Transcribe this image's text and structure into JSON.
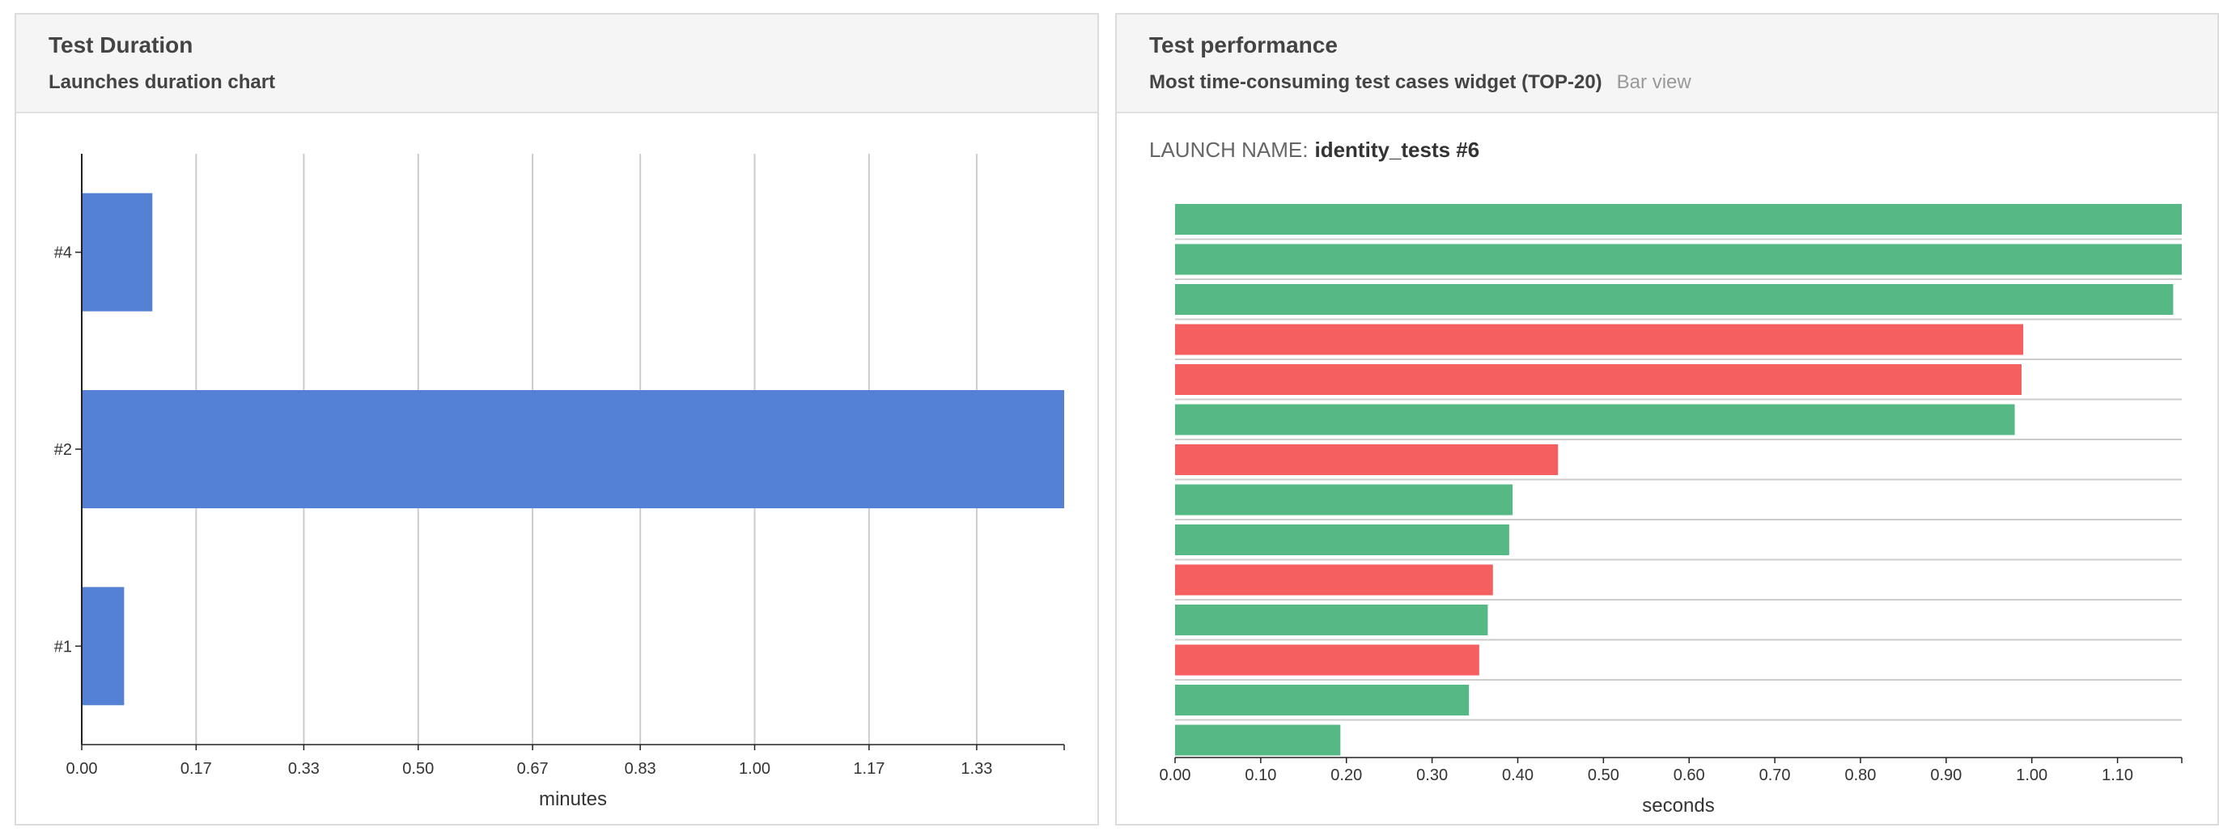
{
  "left_widget": {
    "title": "Test Duration",
    "subtitle": "Launches duration chart"
  },
  "right_widget": {
    "title": "Test performance",
    "subtitle": "Most time-consuming test cases widget (TOP-20)",
    "view_mode": "Bar view",
    "launch_label": "LAUNCH NAME:",
    "launch_name": "identity_tests #6"
  },
  "colors": {
    "duration_bar": "#5581d5",
    "passed": "#56b985",
    "failed": "#f55f5f",
    "grid": "#cccccc",
    "axis": "#222222"
  },
  "chart_data": [
    {
      "type": "bar",
      "orientation": "horizontal",
      "categories": [
        "#4",
        "#2",
        "#1"
      ],
      "values": [
        0.105,
        1.46,
        0.063
      ],
      "xlabel": "minutes",
      "xticks": [
        "0.00",
        "0.17",
        "0.33",
        "0.50",
        "0.67",
        "0.83",
        "1.00",
        "1.17",
        "1.33"
      ],
      "xlim": [
        0,
        1.46
      ],
      "grid": true
    },
    {
      "type": "bar",
      "orientation": "horizontal",
      "values": [
        1.175,
        1.175,
        1.165,
        0.99,
        0.988,
        0.98,
        0.447,
        0.394,
        0.39,
        0.371,
        0.365,
        0.355,
        0.343,
        0.193
      ],
      "status": [
        "passed",
        "passed",
        "passed",
        "failed",
        "failed",
        "passed",
        "failed",
        "passed",
        "passed",
        "failed",
        "passed",
        "failed",
        "passed",
        "passed"
      ],
      "xlabel": "seconds",
      "xticks": [
        "0.00",
        "0.10",
        "0.20",
        "0.30",
        "0.40",
        "0.50",
        "0.60",
        "0.70",
        "0.80",
        "0.90",
        "1.00",
        "1.10"
      ],
      "xlim": [
        0,
        1.175
      ],
      "grid": true
    }
  ]
}
